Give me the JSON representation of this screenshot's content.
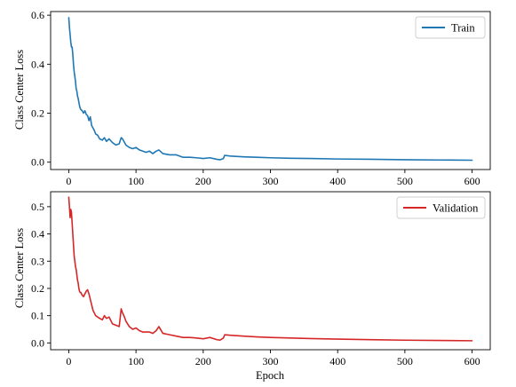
{
  "chart_data": [
    {
      "type": "line",
      "ylabel": "Class Center Loss",
      "xlabel": "",
      "xlim": [
        -27,
        627
      ],
      "ylim": [
        -0.03,
        0.615
      ],
      "x_ticks": [
        0,
        100,
        200,
        300,
        400,
        500,
        600
      ],
      "y_ticks": [
        0.0,
        0.2,
        0.4,
        0.6
      ],
      "y_tick_labels": [
        "0.0",
        "0.2",
        "0.4",
        "0.6"
      ],
      "legend_position": "top-right",
      "grid": false,
      "series": [
        {
          "name": "Train",
          "color": "#1f77b4",
          "x": [
            0,
            1,
            2,
            3,
            4,
            5,
            6,
            7,
            8,
            9,
            10,
            11,
            12,
            13,
            14,
            15,
            16,
            17,
            18,
            20,
            22,
            24,
            26,
            28,
            30,
            32,
            34,
            36,
            38,
            40,
            43,
            46,
            50,
            53,
            56,
            60,
            65,
            70,
            75,
            78,
            80,
            82,
            85,
            90,
            95,
            100,
            105,
            110,
            115,
            120,
            125,
            130,
            134,
            140,
            150,
            160,
            170,
            180,
            190,
            200,
            210,
            220,
            225,
            230,
            232,
            240,
            260,
            280,
            300,
            330,
            360,
            400,
            450,
            500,
            550,
            600
          ],
          "y": [
            0.59,
            0.55,
            0.52,
            0.49,
            0.47,
            0.47,
            0.44,
            0.4,
            0.37,
            0.35,
            0.33,
            0.3,
            0.29,
            0.27,
            0.26,
            0.245,
            0.23,
            0.22,
            0.215,
            0.21,
            0.2,
            0.21,
            0.195,
            0.19,
            0.17,
            0.185,
            0.15,
            0.14,
            0.13,
            0.115,
            0.11,
            0.095,
            0.09,
            0.1,
            0.085,
            0.095,
            0.08,
            0.07,
            0.075,
            0.1,
            0.095,
            0.085,
            0.07,
            0.06,
            0.055,
            0.06,
            0.05,
            0.045,
            0.04,
            0.045,
            0.035,
            0.045,
            0.05,
            0.035,
            0.03,
            0.03,
            0.02,
            0.02,
            0.018,
            0.015,
            0.018,
            0.012,
            0.01,
            0.015,
            0.028,
            0.025,
            0.022,
            0.02,
            0.018,
            0.016,
            0.015,
            0.013,
            0.012,
            0.01,
            0.009,
            0.008
          ]
        }
      ]
    },
    {
      "type": "line",
      "ylabel": "Class Center Loss",
      "xlabel": "Epoch",
      "xlim": [
        -27,
        627
      ],
      "ylim": [
        -0.025,
        0.555
      ],
      "x_ticks": [
        0,
        100,
        200,
        300,
        400,
        500,
        600
      ],
      "y_ticks": [
        0.0,
        0.1,
        0.2,
        0.3,
        0.4,
        0.5
      ],
      "y_tick_labels": [
        "0.0",
        "0.1",
        "0.2",
        "0.3",
        "0.4",
        "0.5"
      ],
      "legend_position": "top-right",
      "grid": false,
      "series": [
        {
          "name": "Validation",
          "color": "#d62728",
          "x": [
            0,
            1,
            2,
            3,
            4,
            5,
            6,
            7,
            8,
            9,
            10,
            11,
            12,
            13,
            14,
            15,
            16,
            17,
            18,
            20,
            22,
            24,
            26,
            28,
            30,
            32,
            34,
            36,
            38,
            40,
            43,
            46,
            50,
            53,
            56,
            60,
            65,
            70,
            75,
            78,
            80,
            82,
            85,
            90,
            95,
            100,
            105,
            110,
            115,
            120,
            125,
            130,
            134,
            140,
            150,
            160,
            170,
            180,
            190,
            200,
            210,
            220,
            225,
            230,
            232,
            240,
            260,
            280,
            300,
            330,
            360,
            400,
            450,
            500,
            550,
            600
          ],
          "y": [
            0.535,
            0.5,
            0.46,
            0.49,
            0.48,
            0.44,
            0.4,
            0.36,
            0.32,
            0.3,
            0.28,
            0.27,
            0.25,
            0.23,
            0.22,
            0.2,
            0.19,
            0.185,
            0.185,
            0.175,
            0.17,
            0.18,
            0.19,
            0.195,
            0.18,
            0.16,
            0.14,
            0.12,
            0.11,
            0.1,
            0.095,
            0.09,
            0.085,
            0.1,
            0.09,
            0.095,
            0.07,
            0.065,
            0.06,
            0.125,
            0.11,
            0.1,
            0.08,
            0.06,
            0.05,
            0.055,
            0.045,
            0.04,
            0.04,
            0.04,
            0.035,
            0.045,
            0.06,
            0.035,
            0.03,
            0.025,
            0.02,
            0.02,
            0.018,
            0.015,
            0.02,
            0.012,
            0.01,
            0.018,
            0.03,
            0.028,
            0.025,
            0.022,
            0.02,
            0.018,
            0.016,
            0.014,
            0.012,
            0.01,
            0.009,
            0.008
          ]
        }
      ]
    }
  ]
}
